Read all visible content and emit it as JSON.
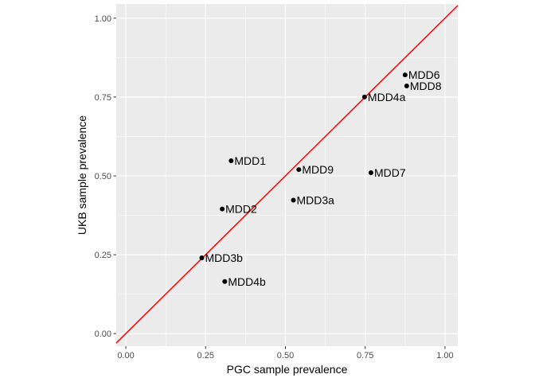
{
  "chart_data": {
    "type": "scatter",
    "title": "",
    "xlabel": "PGC sample prevalence",
    "ylabel": "UKB sample prevalence",
    "xlim": [
      -0.03,
      1.04
    ],
    "ylim": [
      -0.04,
      1.045
    ],
    "xticks": [
      0.0,
      0.25,
      0.5,
      0.75,
      1.0
    ],
    "xtick_labels": [
      "0.00",
      "0.25",
      "0.50",
      "0.75",
      "1.00"
    ],
    "yticks": [
      0.0,
      0.25,
      0.5,
      0.75,
      1.0
    ],
    "ytick_labels": [
      "0.00",
      "0.25",
      "0.50",
      "0.75",
      "1.00"
    ],
    "grid": true,
    "reference_line": {
      "type": "identity",
      "slope": 1,
      "intercept": 0,
      "color": "#ff0000"
    },
    "colors": {
      "panel": "#ebebeb",
      "grid_major": "#ffffff",
      "point": "#000000",
      "line": "#ff0000"
    },
    "points": [
      {
        "label": "MDD6",
        "x": 0.875,
        "y": 0.82
      },
      {
        "label": "MDD8",
        "x": 0.88,
        "y": 0.785
      },
      {
        "label": "MDD4a",
        "x": 0.748,
        "y": 0.75
      },
      {
        "label": "MDD1",
        "x": 0.33,
        "y": 0.548
      },
      {
        "label": "MDD9",
        "x": 0.542,
        "y": 0.52
      },
      {
        "label": "MDD7",
        "x": 0.768,
        "y": 0.51
      },
      {
        "label": "MDD3a",
        "x": 0.525,
        "y": 0.423
      },
      {
        "label": "MDD2",
        "x": 0.302,
        "y": 0.395
      },
      {
        "label": "MDD3b",
        "x": 0.238,
        "y": 0.24
      },
      {
        "label": "MDD4b",
        "x": 0.31,
        "y": 0.165
      }
    ]
  }
}
